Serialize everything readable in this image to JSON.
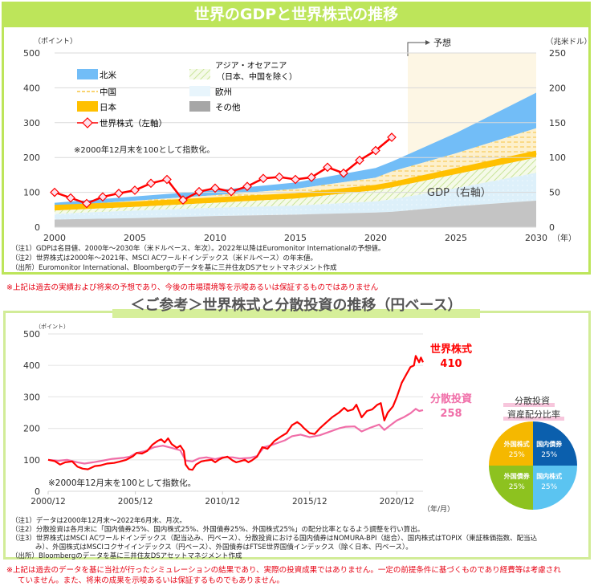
{
  "colors": {
    "header_green": "#bde55a",
    "stocks_red": "#ff0000",
    "diversified_pink": "#f06ea8",
    "north_america": "#72bdf7",
    "china": "#f7c542",
    "japan": "#ffc000",
    "asia_oceania": "#c9e59a",
    "europe": "#ddf0fa",
    "other": "#c4c4c4",
    "forecast_bg": "#fdf6e4",
    "pie_foreign_stocks": "#f5b800",
    "pie_domestic_bonds": "#0b5fad",
    "pie_foreign_bonds": "#8dc21f",
    "pie_domestic_stocks": "#5bc4f1"
  },
  "header": {
    "title": "世界のGDPと世界株式の推移"
  },
  "chart1_notes": {
    "note1": "（注1）GDPは名目値、2000年～2030年（米ドルベース、年次）。2022年以降はEuromonitor  Internationalの予想値。",
    "note2": "（注2）世界株式は2000年～2021年、MSCI  ACワールドインデックス（米ドルベース）の年末値。",
    "source": "（出所）Euromonitor International、Bloombergのデータを基に三井住友DSアセットマネジメント作成"
  },
  "warning1": "※上記は過去の実績および将来の予想であり、今後の市場環境等を示唆あるいは保証するものではありません",
  "chart_data": [
    {
      "type": "area",
      "title": "世界のGDPと世界株式の推移",
      "left_axis_label": "（ポイント）",
      "right_axis_label": "（兆米ドル）",
      "x_unit_label": "（年）",
      "left_ylim": [
        0,
        500
      ],
      "right_ylim": [
        0,
        250
      ],
      "left_ticks": [
        "0",
        "100",
        "200",
        "300",
        "400",
        "500"
      ],
      "right_ticks": [
        "0",
        "50",
        "100",
        "150",
        "200",
        "250"
      ],
      "x_ticks": [
        "2000",
        "2005",
        "2010",
        "2015",
        "2020",
        "2025",
        "2030"
      ],
      "forecast_label": "予想",
      "forecast_start": 2022,
      "annotation_index": "※2000年12月末を100として指数化。",
      "annotation_gdp": "GDP（右軸）",
      "legend": [
        {
          "key": "north_america",
          "label": "北米"
        },
        {
          "key": "china",
          "label": "中国"
        },
        {
          "key": "japan",
          "label": "日本"
        },
        {
          "key": "stocks",
          "label": "世界株式（左軸）"
        },
        {
          "key": "asia_oceania",
          "label": "アジア・オセアニア",
          "label2": "（日本、中国を除く）"
        },
        {
          "key": "europe",
          "label": "欧州"
        },
        {
          "key": "other",
          "label": "その他"
        }
      ],
      "gdp_years": [
        2000,
        2005,
        2010,
        2015,
        2020,
        2021,
        2025,
        2030
      ],
      "gdp_stack_cumulative": {
        "other": [
          11,
          13,
          16,
          18,
          21,
          22,
          30,
          38
        ],
        "europe": [
          19,
          24,
          28,
          31,
          37,
          40,
          56,
          78
        ],
        "asia_oceania": [
          24,
          29,
          35,
          41,
          53,
          57,
          76,
          100
        ],
        "japan": [
          29,
          34,
          40,
          46,
          58,
          62,
          82,
          107
        ],
        "china": [
          30,
          38,
          46,
          55,
          71,
          80,
          106,
          142
        ],
        "north_america": [
          35,
          44,
          53,
          64,
          85,
          94,
          135,
          193
        ]
      },
      "stocks_years": [
        2000,
        2001,
        2002,
        2003,
        2004,
        2005,
        2006,
        2007,
        2008,
        2009,
        2010,
        2011,
        2012,
        2013,
        2014,
        2015,
        2016,
        2017,
        2018,
        2019,
        2020,
        2021
      ],
      "stocks_values": [
        100,
        84,
        68,
        87,
        97,
        106,
        126,
        137,
        78,
        102,
        112,
        102,
        117,
        140,
        144,
        137,
        143,
        172,
        155,
        192,
        220,
        258
      ]
    },
    {
      "type": "line",
      "title": "＜ご参考＞世界株式と分散投資の推移（円ベース）",
      "ylabel": "（ポイント）",
      "ylim": [
        0,
        500
      ],
      "y_ticks": [
        "0",
        "100",
        "200",
        "300",
        "400",
        "500"
      ],
      "x_ticks": [
        "2000/12",
        "2005/12",
        "2010/12",
        "2015/12",
        "2020/12"
      ],
      "x_unit_label": "（年/月）",
      "annotation": "※2000年12月末を100として指数化。",
      "x_range": [
        2000.92,
        2022.42
      ],
      "series": [
        {
          "name": "世界株式",
          "end_value": "410",
          "points": [
            [
              2000.92,
              100
            ],
            [
              2001.3,
              96
            ],
            [
              2001.6,
              85
            ],
            [
              2001.9,
              92
            ],
            [
              2002.3,
              95
            ],
            [
              2002.6,
              78
            ],
            [
              2002.9,
              72
            ],
            [
              2003.2,
              70
            ],
            [
              2003.6,
              80
            ],
            [
              2003.9,
              82
            ],
            [
              2004.3,
              88
            ],
            [
              2004.7,
              90
            ],
            [
              2005.0,
              94
            ],
            [
              2005.4,
              100
            ],
            [
              2005.8,
              112
            ],
            [
              2006.0,
              122
            ],
            [
              2006.3,
              120
            ],
            [
              2006.6,
              128
            ],
            [
              2006.9,
              148
            ],
            [
              2007.2,
              160
            ],
            [
              2007.4,
              165
            ],
            [
              2007.6,
              155
            ],
            [
              2007.8,
              168
            ],
            [
              2008.0,
              150
            ],
            [
              2008.3,
              138
            ],
            [
              2008.5,
              145
            ],
            [
              2008.7,
              128
            ],
            [
              2008.8,
              85
            ],
            [
              2009.0,
              70
            ],
            [
              2009.2,
              68
            ],
            [
              2009.4,
              85
            ],
            [
              2009.7,
              95
            ],
            [
              2010.0,
              98
            ],
            [
              2010.3,
              100
            ],
            [
              2010.5,
              92
            ],
            [
              2010.7,
              100
            ],
            [
              2010.92,
              106
            ],
            [
              2011.2,
              110
            ],
            [
              2011.5,
              98
            ],
            [
              2011.7,
              92
            ],
            [
              2011.9,
              95
            ],
            [
              2012.2,
              100
            ],
            [
              2012.4,
              92
            ],
            [
              2012.6,
              98
            ],
            [
              2012.9,
              110
            ],
            [
              2013.2,
              140
            ],
            [
              2013.5,
              135
            ],
            [
              2013.9,
              160
            ],
            [
              2014.3,
              175
            ],
            [
              2014.6,
              185
            ],
            [
              2014.9,
              210
            ],
            [
              2015.2,
              220
            ],
            [
              2015.4,
              212
            ],
            [
              2015.6,
              200
            ],
            [
              2015.92,
              185
            ],
            [
              2016.2,
              182
            ],
            [
              2016.5,
              200
            ],
            [
              2016.8,
              215
            ],
            [
              2017.2,
              235
            ],
            [
              2017.6,
              250
            ],
            [
              2017.9,
              265
            ],
            [
              2018.1,
              255
            ],
            [
              2018.4,
              260
            ],
            [
              2018.6,
              275
            ],
            [
              2018.9,
              235
            ],
            [
              2019.2,
              255
            ],
            [
              2019.5,
              260
            ],
            [
              2019.8,
              275
            ],
            [
              2020.0,
              280
            ],
            [
              2020.2,
              225
            ],
            [
              2020.4,
              250
            ],
            [
              2020.7,
              270
            ],
            [
              2020.92,
              300
            ],
            [
              2021.2,
              345
            ],
            [
              2021.5,
              375
            ],
            [
              2021.7,
              395
            ],
            [
              2021.9,
              400
            ],
            [
              2022.0,
              430
            ],
            [
              2022.2,
              410
            ],
            [
              2022.3,
              425
            ],
            [
              2022.42,
              410
            ]
          ]
        },
        {
          "name": "分散投資",
          "end_value": "258",
          "points": [
            [
              2000.92,
              100
            ],
            [
              2001.5,
              97
            ],
            [
              2002.0,
              100
            ],
            [
              2002.6,
              92
            ],
            [
              2003.0,
              88
            ],
            [
              2003.5,
              92
            ],
            [
              2004.0,
              97
            ],
            [
              2004.6,
              103
            ],
            [
              2005.2,
              106
            ],
            [
              2005.6,
              110
            ],
            [
              2006.0,
              122
            ],
            [
              2006.5,
              128
            ],
            [
              2007.0,
              140
            ],
            [
              2007.5,
              145
            ],
            [
              2008.0,
              138
            ],
            [
              2008.5,
              130
            ],
            [
              2008.8,
              98
            ],
            [
              2009.2,
              95
            ],
            [
              2009.6,
              105
            ],
            [
              2010.0,
              108
            ],
            [
              2010.5,
              102
            ],
            [
              2010.92,
              108
            ],
            [
              2011.5,
              108
            ],
            [
              2011.9,
              104
            ],
            [
              2012.5,
              106
            ],
            [
              2012.9,
              112
            ],
            [
              2013.3,
              140
            ],
            [
              2013.8,
              148
            ],
            [
              2014.5,
              162
            ],
            [
              2014.9,
              175
            ],
            [
              2015.4,
              180
            ],
            [
              2015.92,
              172
            ],
            [
              2016.5,
              178
            ],
            [
              2017.0,
              188
            ],
            [
              2017.6,
              200
            ],
            [
              2018.0,
              205
            ],
            [
              2018.5,
              206
            ],
            [
              2018.9,
              190
            ],
            [
              2019.4,
              202
            ],
            [
              2019.9,
              212
            ],
            [
              2020.2,
              195
            ],
            [
              2020.6,
              212
            ],
            [
              2020.92,
              225
            ],
            [
              2021.3,
              235
            ],
            [
              2021.7,
              248
            ],
            [
              2022.0,
              262
            ],
            [
              2022.2,
              255
            ],
            [
              2022.42,
              258
            ]
          ]
        }
      ],
      "pie": {
        "title_line1": "分散投資",
        "title_line2": "資産配分比率",
        "slices": [
          {
            "label": "外国株式",
            "value": 25,
            "pct": "25%",
            "color_key": "pie_foreign_stocks"
          },
          {
            "label": "国内債券",
            "value": 25,
            "pct": "25%",
            "color_key": "pie_domestic_bonds"
          },
          {
            "label": "国内株式",
            "value": 25,
            "pct": "25%",
            "color_key": "pie_domestic_stocks"
          },
          {
            "label": "外国債券",
            "value": 25,
            "pct": "25%",
            "color_key": "pie_foreign_bonds"
          }
        ]
      }
    }
  ],
  "section2": {
    "title": "＜ご参考＞世界株式と分散投資の推移（円ベース）"
  },
  "chart2_notes": {
    "note1": "（注1）データは2000年12月末～2022年6月末、月次。",
    "note2": "（注2）分散投資は各月末に「国内債券25%、国内株式25%、外国債券25%、外国株式25%」の配分比率となるよう調整を行い算出。",
    "note3a": "（注3）世界株式はMSCI  ACワールドインデックス（配当込み、円ベース）、分散投資における国内債券はNOMURA-BPI（総合）、国内株式はTOPIX（東証株価指数、配当込",
    "note3b": "み）、外国株式はMSCIコクサイインデックス（円ベース）、外国債券はFTSE世界国債インデックス（除く日本、円ベース）。",
    "source": "（出所）Bloombergのデータを基に三井住友DSアセットマネジメント作成"
  },
  "warning2_line1": "※上記は過去のデータを基に当社が行ったシミュレーションの結果であり、実際の投資成果ではありません。一定の前提条件に基づくものであり経費等は考慮され",
  "warning2_line2": "ていません。また、将来の成果を示唆あるいは保証するものでもありません。"
}
